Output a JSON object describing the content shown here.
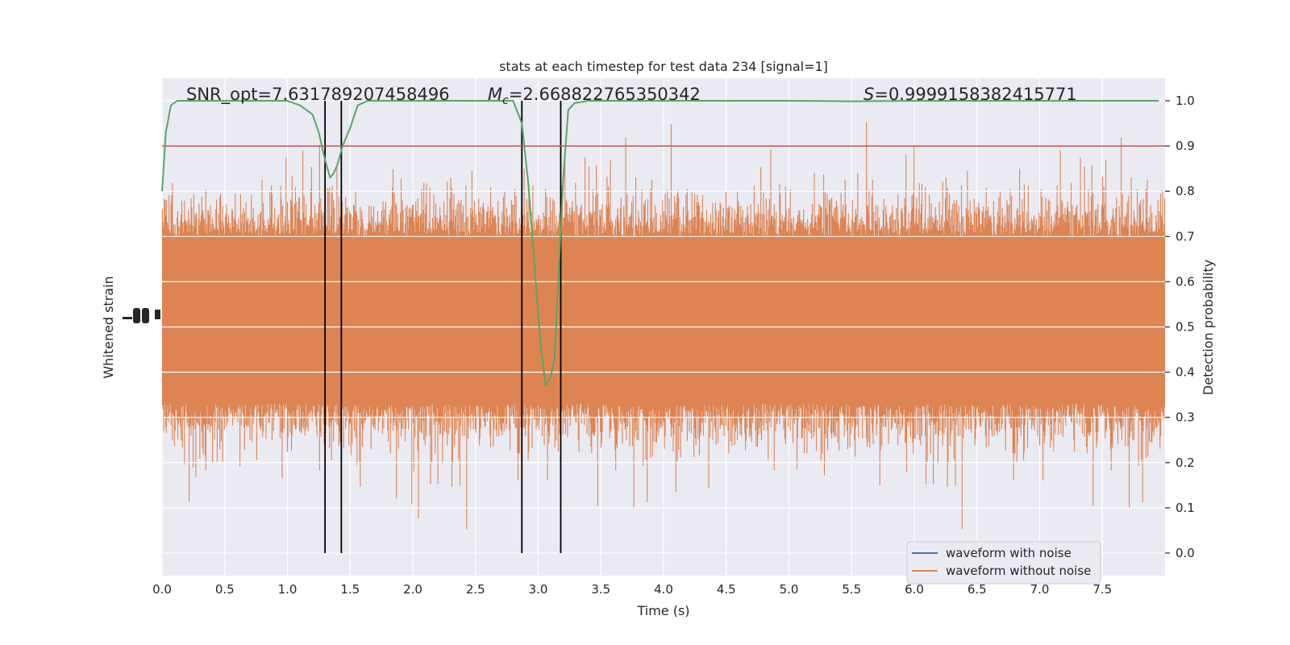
{
  "chart_data": {
    "type": "line",
    "title": "stats at each timestep for test data 234 [signal=1]",
    "xlabel": "Time (s)",
    "ylabel_left": "Whitened strain",
    "ylabel_right": "Detection probability",
    "xlim": [
      0,
      8.0
    ],
    "ylim_right": [
      -0.05,
      1.05
    ],
    "x_ticks": [
      0.0,
      0.5,
      1.0,
      1.5,
      2.0,
      2.5,
      3.0,
      3.5,
      4.0,
      4.5,
      5.0,
      5.5,
      6.0,
      6.5,
      7.0,
      7.5
    ],
    "x_tick_labels": [
      "0.0",
      "0.5",
      "1.0",
      "1.5",
      "2.0",
      "2.5",
      "3.0",
      "3.5",
      "4.0",
      "4.5",
      "5.0",
      "5.5",
      "6.0",
      "6.5",
      "7.0",
      "7.5"
    ],
    "right_ticks": [
      0.0,
      0.1,
      0.2,
      0.3,
      0.4,
      0.5,
      0.6,
      0.7,
      0.8,
      0.9,
      1.0
    ],
    "right_tick_labels": [
      "0.0",
      "0.1",
      "0.2",
      "0.3",
      "0.4",
      "0.5",
      "0.6",
      "0.7",
      "0.8",
      "0.9",
      "1.0"
    ],
    "grid": true,
    "legend_position": "bottom-right",
    "annotations": {
      "snr": "SNR_opt=7.631789207458496",
      "mc_symbol": "M",
      "mc_sub": "c",
      "mc_value": "=2.668822765350342",
      "s_symbol": "S",
      "s_value": "=0.9999158382415771"
    },
    "threshold": 0.9,
    "vertical_markers": [
      1.3,
      1.43,
      2.87,
      3.18
    ],
    "detection_probability": {
      "x": [
        0.0,
        0.03,
        0.07,
        0.12,
        0.2,
        0.4,
        0.6,
        0.8,
        1.0,
        1.1,
        1.2,
        1.25,
        1.3,
        1.34,
        1.37,
        1.4,
        1.44,
        1.5,
        1.56,
        1.64,
        1.8,
        2.0,
        2.4,
        2.8,
        2.87,
        2.92,
        2.97,
        3.02,
        3.06,
        3.1,
        3.13,
        3.16,
        3.2,
        3.24,
        3.29,
        3.4,
        4.0,
        5.0,
        5.5,
        6.0,
        7.0,
        7.95
      ],
      "y": [
        0.8,
        0.93,
        0.99,
        1.0,
        1.0,
        1.0,
        1.0,
        1.0,
        1.0,
        0.99,
        0.97,
        0.93,
        0.87,
        0.83,
        0.84,
        0.86,
        0.9,
        0.94,
        0.99,
        1.0,
        1.0,
        1.0,
        1.0,
        1.0,
        0.95,
        0.82,
        0.64,
        0.46,
        0.37,
        0.39,
        0.43,
        0.6,
        0.83,
        0.98,
        0.995,
        1.0,
        1.0,
        1.0,
        0.999,
        1.0,
        1.0,
        1.0
      ]
    },
    "series": [
      {
        "name": "waveform with noise",
        "color": "#4c72b0"
      },
      {
        "name": "waveform without noise",
        "color": "#dd8452"
      }
    ],
    "colors": {
      "noise_band": "#dd8452",
      "probability_line": "#55a868",
      "threshold_line": "#c44e52",
      "markers": "#000000",
      "plot_background": "#eaeaf2",
      "grid": "#ffffff"
    }
  }
}
